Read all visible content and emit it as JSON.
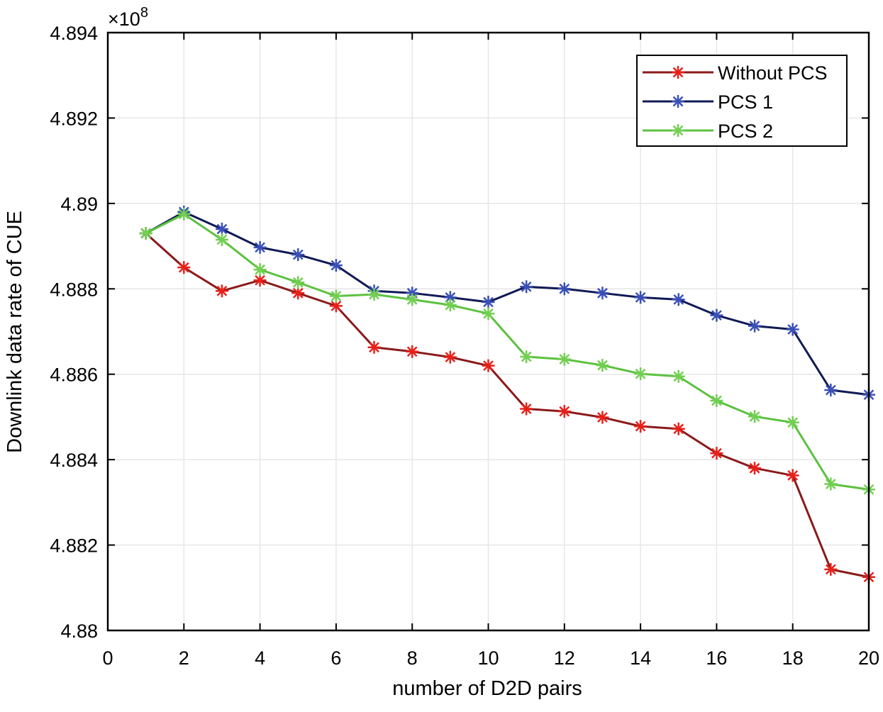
{
  "chart_data": {
    "type": "line",
    "title": "",
    "xlabel": "number of D2D pairs",
    "ylabel": "Downlink data rate of CUE",
    "y_multiplier_label": "×10",
    "y_multiplier_exponent": "8",
    "xlim": [
      0,
      20
    ],
    "ylim": [
      4.88,
      4.894
    ],
    "grid": true,
    "legend_position": "top-right",
    "x_ticks": [
      0,
      2,
      4,
      6,
      8,
      10,
      12,
      14,
      16,
      18,
      20
    ],
    "x_tick_labels": [
      "0",
      "2",
      "4",
      "6",
      "8",
      "10",
      "12",
      "14",
      "16",
      "18",
      "20"
    ],
    "y_ticks": [
      4.88,
      4.882,
      4.884,
      4.886,
      4.888,
      4.89,
      4.892,
      4.894
    ],
    "y_tick_labels": [
      "4.88",
      "4.882",
      "4.884",
      "4.886",
      "4.888",
      "4.89",
      "4.892",
      "4.894"
    ],
    "x": [
      1,
      2,
      3,
      4,
      5,
      6,
      7,
      8,
      9,
      10,
      11,
      12,
      13,
      14,
      15,
      16,
      17,
      18,
      19,
      20
    ],
    "series": [
      {
        "name": "Without PCS",
        "line_color": "#8b1a1a",
        "marker_color": "#e8201a",
        "values": [
          4.8893,
          4.8885,
          4.88795,
          4.8882,
          4.8879,
          4.8876,
          4.88663,
          4.88653,
          4.8864,
          4.8862,
          4.88519,
          4.88513,
          4.88499,
          4.88478,
          4.88472,
          4.88415,
          4.8838,
          4.88363,
          4.88143,
          4.88125
        ]
      },
      {
        "name": " PCS 1",
        "line_color": "#101a55",
        "marker_color": "#3a50b8",
        "values": [
          4.8893,
          4.8898,
          4.8894,
          4.88897,
          4.8888,
          4.88855,
          4.88795,
          4.8879,
          4.8878,
          4.88769,
          4.88805,
          4.888,
          4.8879,
          4.8878,
          4.88775,
          4.88738,
          4.88713,
          4.88705,
          4.88563,
          4.88552
        ]
      },
      {
        "name": "PCS 2",
        "line_color": "#5cc140",
        "marker_color": "#72cf52",
        "values": [
          4.8893,
          4.88975,
          4.88915,
          4.88845,
          4.88815,
          4.88783,
          4.88787,
          4.88775,
          4.88762,
          4.88742,
          4.88641,
          4.88635,
          4.88621,
          4.88601,
          4.88595,
          4.88538,
          4.88501,
          4.88487,
          4.88343,
          4.8833
        ]
      }
    ]
  },
  "colors": {
    "background": "#ffffff",
    "axes": "#000000",
    "grid": "#e6e6e6"
  }
}
